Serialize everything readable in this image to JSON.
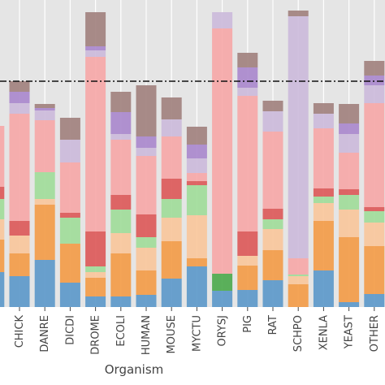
{
  "chart_data": {
    "type": "stacked_bar",
    "x_label": "Organism",
    "categories": [
      null,
      "CHICK",
      "DANRE",
      "DICDI",
      "DROME",
      "ECOLI",
      "HUMAN",
      "MOUSE",
      "MYCTU",
      "ORYSJ",
      "PIG",
      "RAT",
      "SCHPO",
      "XENLA",
      "YEAST",
      "OTHER"
    ],
    "series": [
      {
        "color": "#5a97c9",
        "values": [
          43,
          38,
          58,
          30,
          13,
          13,
          15,
          35,
          50,
          20,
          21,
          33,
          0,
          45,
          6,
          16
        ]
      },
      {
        "color": "#4aa84a",
        "values": [
          0,
          0,
          0,
          0,
          0,
          0,
          0,
          0,
          0,
          21,
          0,
          0,
          0,
          0,
          0,
          0
        ]
      },
      {
        "color": "#f39a45",
        "values": [
          40,
          28,
          68,
          48,
          23,
          53,
          30,
          46,
          10,
          0,
          30,
          37,
          28,
          61,
          80,
          59
        ]
      },
      {
        "color": "#f8c59a",
        "values": [
          25,
          22,
          7,
          0,
          7,
          25,
          28,
          29,
          53,
          0,
          12,
          26,
          10,
          22,
          34,
          29
        ]
      },
      {
        "color": "#9fdb98",
        "values": [
          25,
          0,
          33,
          32,
          7,
          29,
          13,
          23,
          37,
          0,
          0,
          12,
          2,
          8,
          18,
          14
        ]
      },
      {
        "color": "#dc5656",
        "values": [
          15,
          18,
          0,
          6,
          43,
          18,
          28,
          25,
          5,
          0,
          30,
          13,
          0,
          10,
          7,
          5
        ]
      },
      {
        "color": "#f6a6a6",
        "values": [
          75,
          132,
          64,
          62,
          215,
          68,
          72,
          52,
          10,
          302,
          167,
          95,
          20,
          74,
          45,
          128
        ]
      },
      {
        "color": "#cbb9da",
        "values": [
          0,
          13,
          12,
          28,
          8,
          7,
          10,
          21,
          18,
          20,
          10,
          25,
          298,
          18,
          23,
          22
        ]
      },
      {
        "color": "#a886cc",
        "values": [
          0,
          14,
          3,
          0,
          5,
          27,
          14,
          0,
          17,
          0,
          25,
          0,
          0,
          0,
          13,
          12
        ]
      },
      {
        "color": "#a07f7c",
        "values": [
          0,
          13,
          5,
          27,
          42,
          25,
          63,
          27,
          22,
          0,
          18,
          13,
          7,
          13,
          24,
          18
        ]
      }
    ],
    "ylim": [
      0,
      378
    ],
    "reference_line": 278,
    "grid": true
  }
}
